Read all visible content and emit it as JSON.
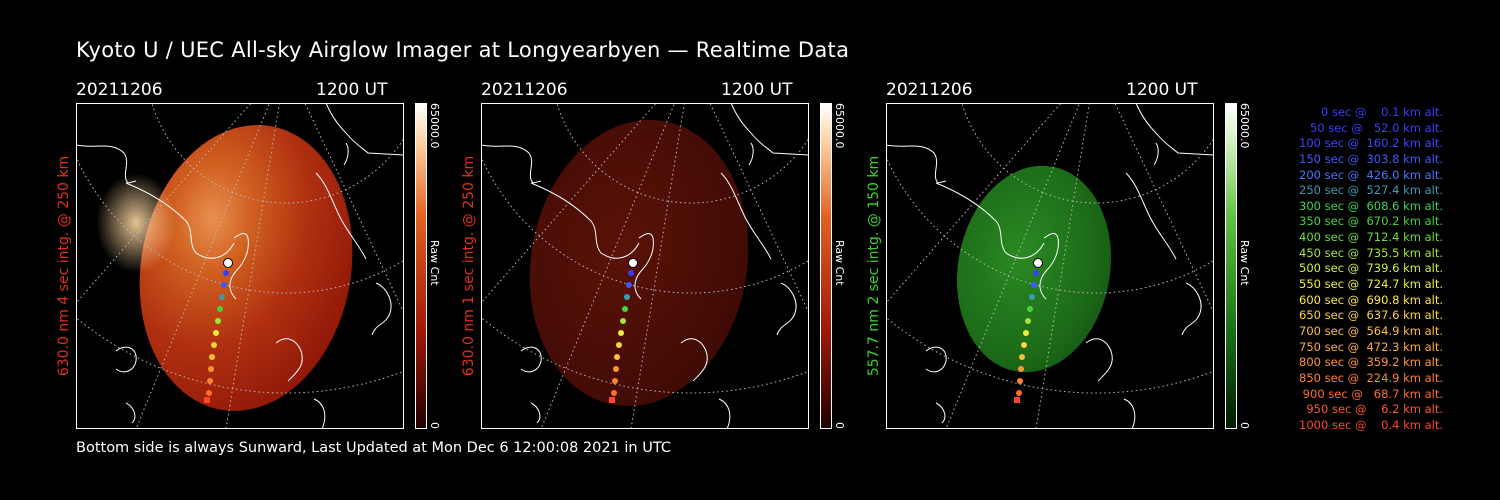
{
  "title": "Kyoto U / UEC All-sky Airglow Imager at Longyearbyen — Realtime Data",
  "footer": "Bottom side is always Sunward, Last Updated at Mon Dec  6 12:00:08 2021 in UTC",
  "panels": [
    {
      "date": "20211206",
      "time": "1200 UT",
      "label": "630.0 nm  4 sec intg. @ 250 km",
      "label_color": "#e0301e",
      "colorbar_max": "65000.0",
      "colorbar_name": "Raw Cnt",
      "colorbar_min": "0",
      "color": "red-bright"
    },
    {
      "date": "20211206",
      "time": "1200 UT",
      "label": "630.0 nm  1 sec intg. @ 250 km",
      "label_color": "#e0301e",
      "colorbar_max": "65000.0",
      "colorbar_name": "Raw Cnt",
      "colorbar_min": "0",
      "color": "red-dim"
    },
    {
      "date": "20211206",
      "time": "1200 UT",
      "label": "557.7 nm  2 sec intg. @ 150 km",
      "label_color": "#3cd22a",
      "colorbar_max": "65000.0",
      "colorbar_name": "Raw Cnt",
      "colorbar_min": "0",
      "color": "green"
    }
  ],
  "legend": [
    {
      "text": "   0 sec @    0.1 km alt.",
      "color": "#3c3cff"
    },
    {
      "text": "  50 sec @   52.0 km alt.",
      "color": "#3c3cff"
    },
    {
      "text": " 100 sec @  160.2 km alt.",
      "color": "#3c46ff"
    },
    {
      "text": " 150 sec @  303.8 km alt.",
      "color": "#3c5aff"
    },
    {
      "text": " 200 sec @  426.0 km alt.",
      "color": "#4678ff"
    },
    {
      "text": " 250 sec @  527.4 km alt.",
      "color": "#3c9ab4"
    },
    {
      "text": " 300 sec @  608.6 km alt.",
      "color": "#3cd25a"
    },
    {
      "text": " 350 sec @  670.2 km alt.",
      "color": "#46d23c"
    },
    {
      "text": " 400 sec @  712.4 km alt.",
      "color": "#6edc3c"
    },
    {
      "text": " 450 sec @  735.5 km alt.",
      "color": "#a0e63c"
    },
    {
      "text": " 500 sec @  739.6 km alt.",
      "color": "#d2f03c"
    },
    {
      "text": " 550 sec @  724.7 km alt.",
      "color": "#f0f03c"
    },
    {
      "text": " 600 sec @  690.8 km alt.",
      "color": "#ffe63c"
    },
    {
      "text": " 650 sec @  637.6 km alt.",
      "color": "#ffd23c"
    },
    {
      "text": " 700 sec @  564.9 km alt.",
      "color": "#ffbe3c"
    },
    {
      "text": " 750 sec @  472.3 km alt.",
      "color": "#ffaa3c"
    },
    {
      "text": " 800 sec @  359.2 km alt.",
      "color": "#ff9632"
    },
    {
      "text": " 850 sec @  224.9 km alt.",
      "color": "#ff8232"
    },
    {
      "text": " 900 sec @   68.7 km alt.",
      "color": "#ff6e28"
    },
    {
      "text": " 950 sec @    6.2 km alt.",
      "color": "#ff5a28"
    },
    {
      "text": "1000 sec @    0.4 km alt.",
      "color": "#ff4628"
    }
  ]
}
